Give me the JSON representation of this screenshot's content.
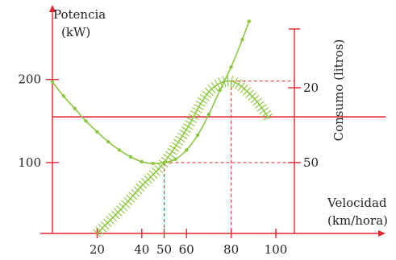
{
  "chart_data": {
    "type": "line",
    "title": "",
    "ylabel_left": [
      "Potencia",
      "(kW)"
    ],
    "ylabel_right": "Consumo (litros)",
    "xlabel": [
      "Velocidad",
      "(km/hora)"
    ],
    "x_ticks": [
      20,
      40,
      50,
      60,
      80,
      100
    ],
    "y_left_ticks": [
      100,
      200
    ],
    "y_right_ticks": [
      50,
      20
    ],
    "colors": {
      "axes": "#e0262f",
      "guides": "#e0262f",
      "potencia": "#8cc63f",
      "consumo": "#8cc63f"
    },
    "series": [
      {
        "style": "dotted-line",
        "x": [
          0,
          5,
          10,
          15,
          20,
          25,
          30,
          35,
          40,
          45,
          50,
          55,
          60,
          65,
          70,
          75,
          80,
          85,
          88
        ],
        "y": [
          197,
          180,
          165,
          150,
          137,
          125,
          115,
          107,
          101,
          99,
          100,
          104,
          115,
          133,
          158,
          187,
          215,
          248,
          270
        ]
      },
      {
        "style": "hatched-curve",
        "x": [
          20,
          30,
          40,
          50,
          60,
          70,
          80,
          90,
          97
        ],
        "y": [
          15,
          42,
          72,
          100,
          140,
          185,
          198,
          178,
          153
        ]
      }
    ],
    "guides": [
      {
        "type": "hline",
        "y": 155
      },
      {
        "type": "dashed-point",
        "x": 50,
        "y": 100
      },
      {
        "type": "dashed-point",
        "x": 80,
        "y": 198
      }
    ]
  }
}
